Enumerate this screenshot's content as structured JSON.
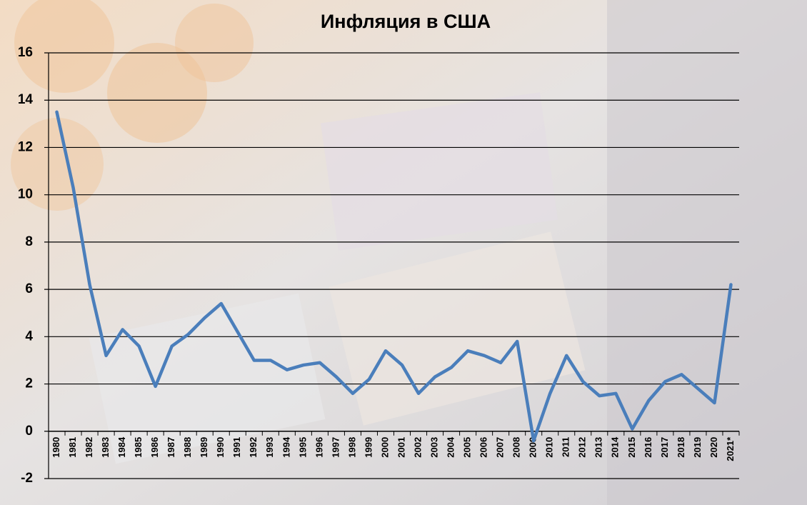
{
  "chart_data": {
    "type": "line",
    "title": "Инфляция в США",
    "categories": [
      "1980",
      "1981",
      "1982",
      "1983",
      "1984",
      "1985",
      "1986",
      "1987",
      "1988",
      "1989",
      "1990",
      "1991",
      "1992",
      "1993",
      "1994",
      "1995",
      "1996",
      "1997",
      "1998",
      "1999",
      "2000",
      "2001",
      "2002",
      "2003",
      "2004",
      "2005",
      "2006",
      "2007",
      "2008",
      "2009",
      "2010",
      "2011",
      "2012",
      "2013",
      "2014",
      "2015",
      "2016",
      "2017",
      "2018",
      "2019",
      "2020",
      "2021*"
    ],
    "series": [
      {
        "name": "Инфляция",
        "color": "#4a7ebb",
        "values": [
          13.5,
          10.3,
          6.2,
          3.2,
          4.3,
          3.6,
          1.9,
          3.6,
          4.1,
          4.8,
          5.4,
          4.2,
          3.0,
          3.0,
          2.6,
          2.8,
          2.9,
          2.3,
          1.6,
          2.2,
          3.4,
          2.8,
          1.6,
          2.3,
          2.7,
          3.4,
          3.2,
          2.9,
          3.8,
          -0.4,
          1.6,
          3.2,
          2.1,
          1.5,
          1.6,
          0.1,
          1.3,
          2.1,
          2.4,
          1.8,
          1.2,
          6.2
        ]
      }
    ],
    "ylim": [
      -2,
      16
    ],
    "yticks": [
      -2,
      0,
      2,
      4,
      6,
      8,
      10,
      12,
      14,
      16
    ],
    "grid": true
  }
}
